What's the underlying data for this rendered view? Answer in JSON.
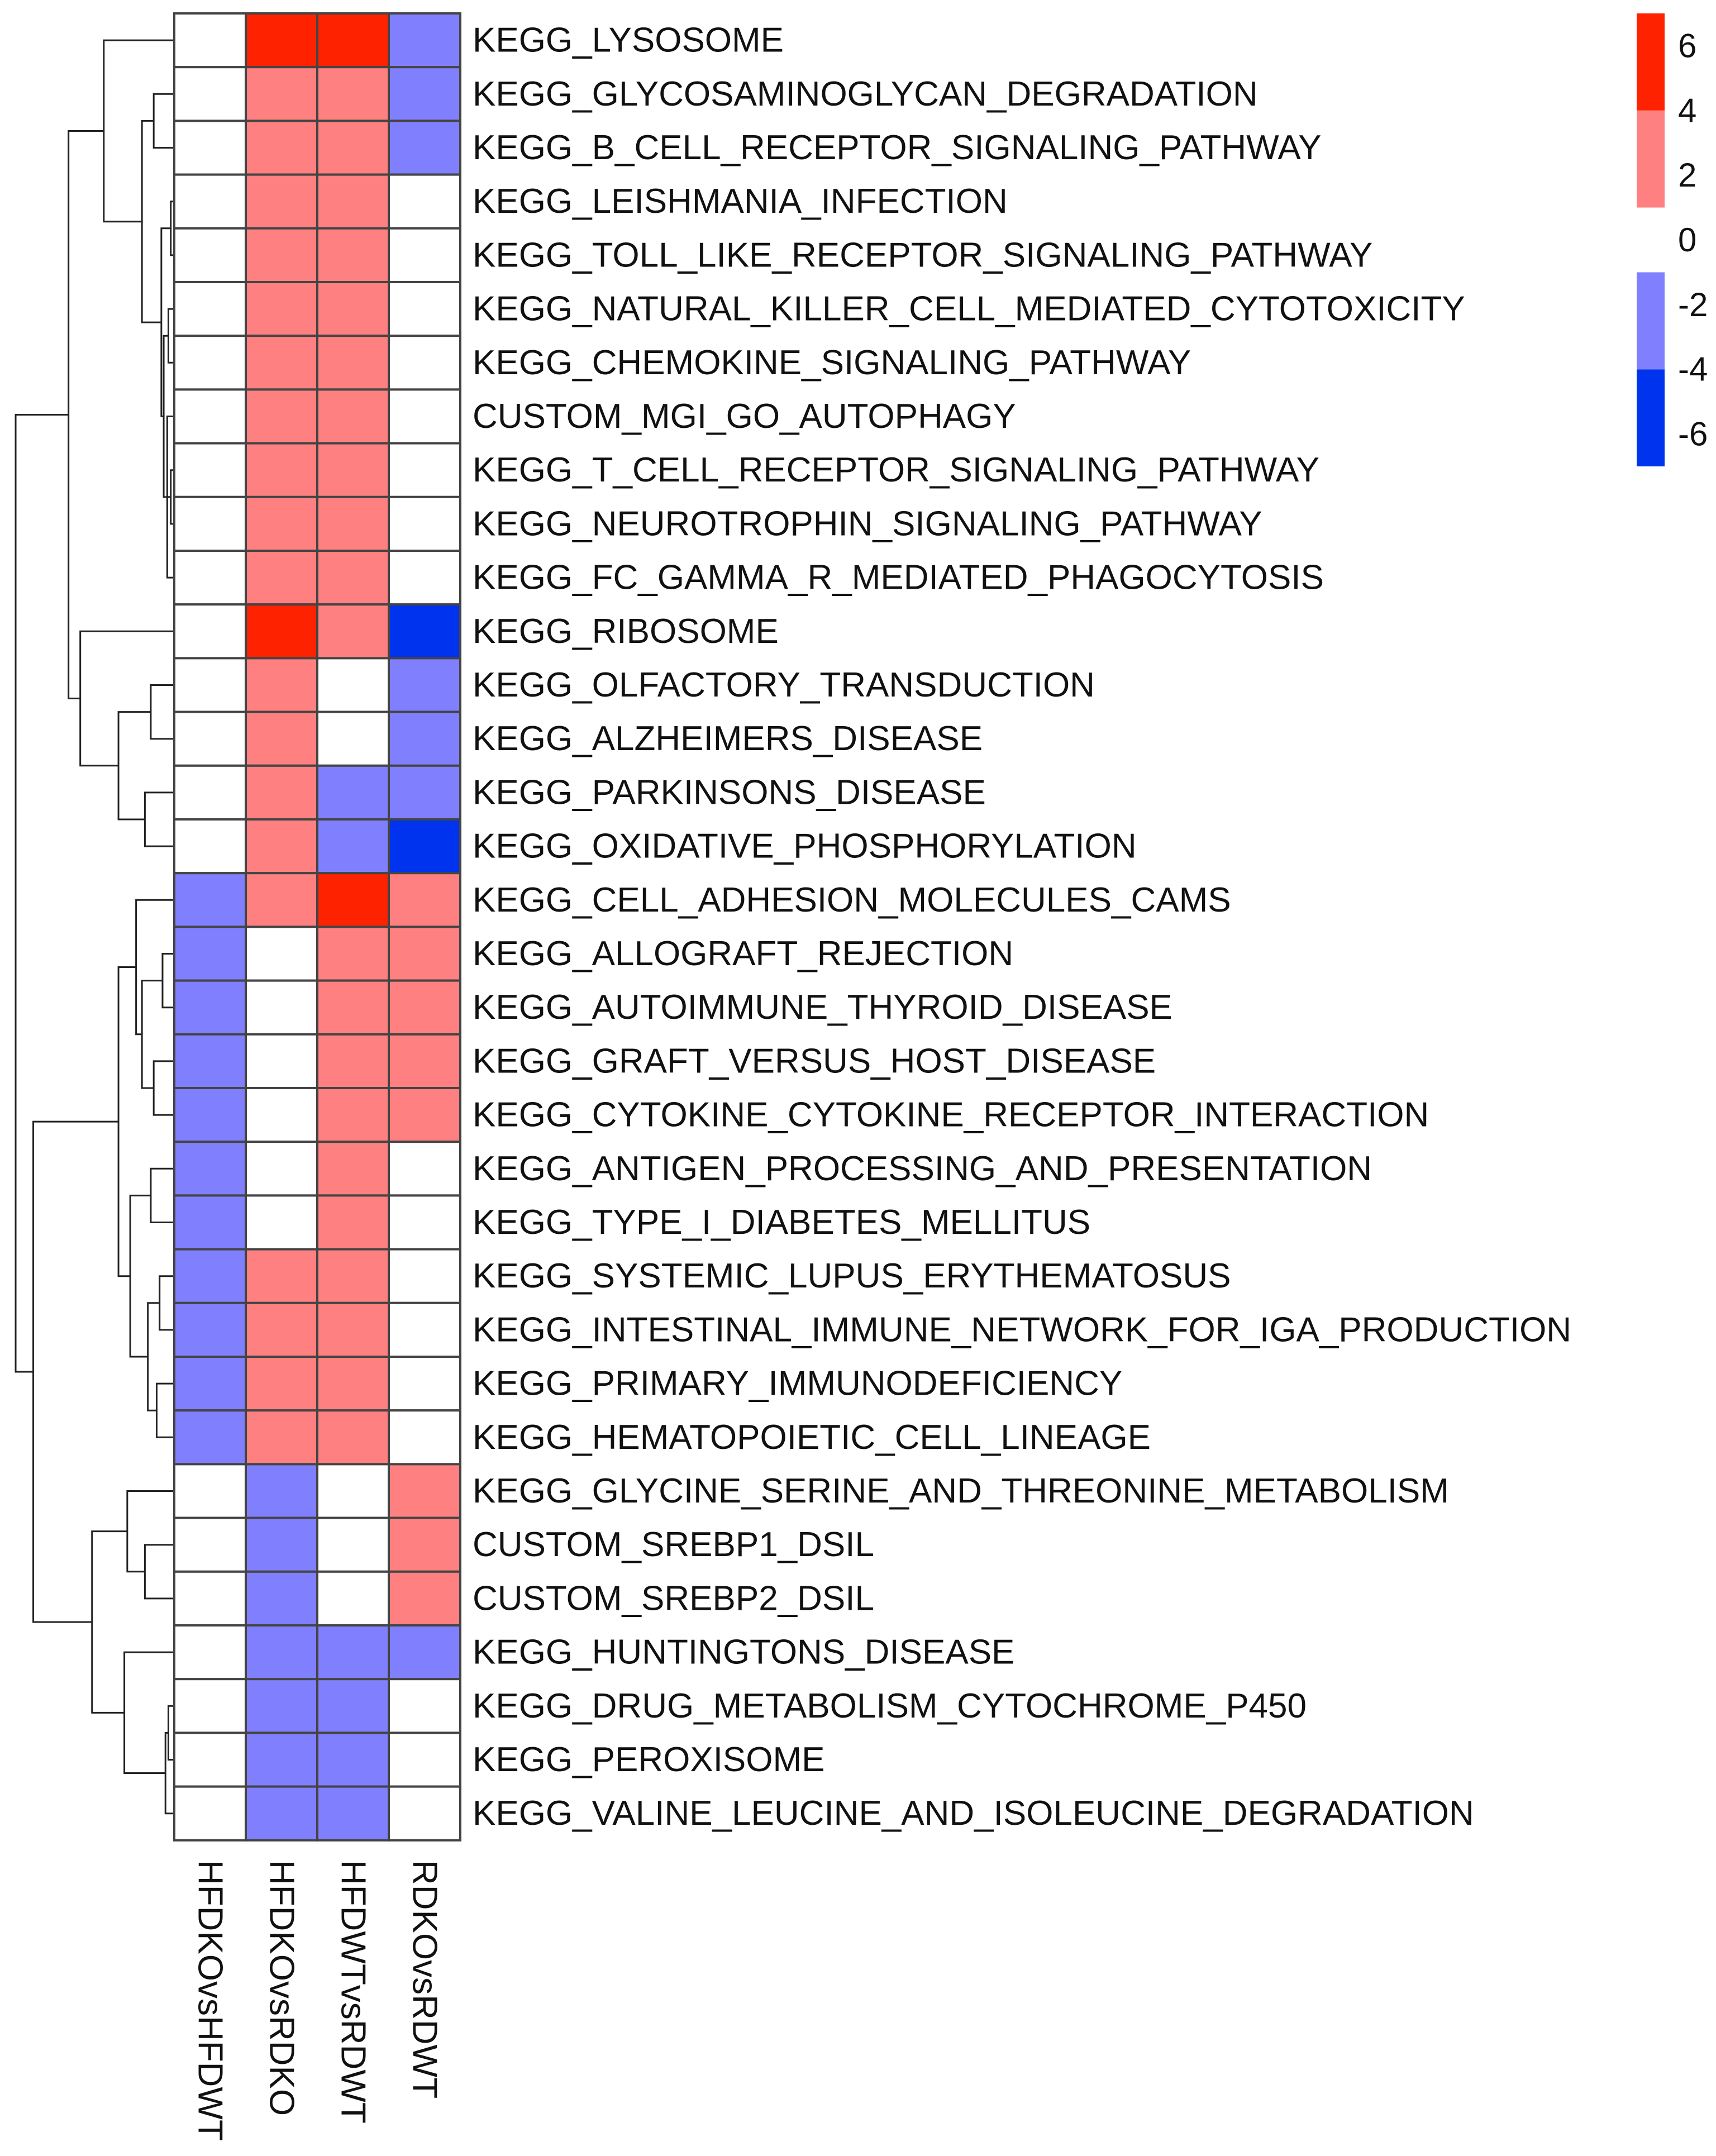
{
  "chart_data": {
    "type": "heatmap",
    "title": "",
    "columns": [
      "HFDKOvsHFDWT",
      "HFDKOvsRDKO",
      "HFDWTvsRDWT",
      "RDKOvsRDWT"
    ],
    "rows": [
      "KEGG_LYSOSOME",
      "KEGG_GLYCOSAMINOGLYCAN_DEGRADATION",
      "KEGG_B_CELL_RECEPTOR_SIGNALING_PATHWAY",
      "KEGG_LEISHMANIA_INFECTION",
      "KEGG_TOLL_LIKE_RECEPTOR_SIGNALING_PATHWAY",
      "KEGG_NATURAL_KILLER_CELL_MEDIATED_CYTOTOXICITY",
      "KEGG_CHEMOKINE_SIGNALING_PATHWAY",
      "CUSTOM_MGI_GO_AUTOPHAGY",
      "KEGG_T_CELL_RECEPTOR_SIGNALING_PATHWAY",
      "KEGG_NEUROTROPHIN_SIGNALING_PATHWAY",
      "KEGG_FC_GAMMA_R_MEDIATED_PHAGOCYTOSIS",
      "KEGG_RIBOSOME",
      "KEGG_OLFACTORY_TRANSDUCTION",
      "KEGG_ALZHEIMERS_DISEASE",
      "KEGG_PARKINSONS_DISEASE",
      "KEGG_OXIDATIVE_PHOSPHORYLATION",
      "KEGG_CELL_ADHESION_MOLECULES_CAMS",
      "KEGG_ALLOGRAFT_REJECTION",
      "KEGG_AUTOIMMUNE_THYROID_DISEASE",
      "KEGG_GRAFT_VERSUS_HOST_DISEASE",
      "KEGG_CYTOKINE_CYTOKINE_RECEPTOR_INTERACTION",
      "KEGG_ANTIGEN_PROCESSING_AND_PRESENTATION",
      "KEGG_TYPE_I_DIABETES_MELLITUS",
      "KEGG_SYSTEMIC_LUPUS_ERYTHEMATOSUS",
      "KEGG_INTESTINAL_IMMUNE_NETWORK_FOR_IGA_PRODUCTION",
      "KEGG_PRIMARY_IMMUNODEFICIENCY",
      "KEGG_HEMATOPOIETIC_CELL_LINEAGE",
      "KEGG_GLYCINE_SERINE_AND_THREONINE_METABOLISM",
      "CUSTOM_SREBP1_DSIL",
      "CUSTOM_SREBP2_DSIL",
      "KEGG_HUNTINGTONS_DISEASE",
      "KEGG_DRUG_METABOLISM_CYTOCHROME_P450",
      "KEGG_PEROXISOME",
      "KEGG_VALINE_LEUCINE_AND_ISOLEUCINE_DEGRADATION"
    ],
    "values": [
      [
        0,
        5,
        5,
        -2
      ],
      [
        0,
        2,
        2,
        -2
      ],
      [
        0,
        2,
        2,
        -2
      ],
      [
        0,
        2,
        2,
        0
      ],
      [
        0,
        2,
        2,
        0
      ],
      [
        0,
        2,
        2,
        0
      ],
      [
        0,
        2,
        2,
        0
      ],
      [
        0,
        2,
        2,
        0
      ],
      [
        0,
        2,
        2,
        0
      ],
      [
        0,
        2,
        2,
        0
      ],
      [
        0,
        2,
        2,
        0
      ],
      [
        0,
        5,
        2,
        -5
      ],
      [
        0,
        2,
        0,
        -2
      ],
      [
        0,
        2,
        0,
        -2
      ],
      [
        0,
        2,
        -2,
        -2
      ],
      [
        0,
        2,
        -2,
        -5
      ],
      [
        -2,
        2,
        5,
        2
      ],
      [
        -2,
        0,
        2,
        2
      ],
      [
        -2,
        0,
        2,
        2
      ],
      [
        -2,
        0,
        2,
        2
      ],
      [
        -2,
        0,
        2,
        2
      ],
      [
        -2,
        0,
        2,
        0
      ],
      [
        -2,
        0,
        2,
        0
      ],
      [
        -2,
        2,
        2,
        0
      ],
      [
        -2,
        2,
        2,
        0
      ],
      [
        -2,
        2,
        2,
        0
      ],
      [
        -2,
        2,
        2,
        0
      ],
      [
        0,
        -2,
        0,
        2
      ],
      [
        0,
        -2,
        0,
        2
      ],
      [
        0,
        -2,
        0,
        2
      ],
      [
        0,
        -2,
        -2,
        -2
      ],
      [
        0,
        -2,
        -2,
        0
      ],
      [
        0,
        -2,
        -2,
        0
      ],
      [
        0,
        -2,
        -2,
        0
      ]
    ],
    "color_scale": {
      "breaks": [
        -7,
        -4,
        -1,
        1,
        4,
        7
      ],
      "colors": [
        "#0033ee",
        "#8080ff",
        "#ffffff",
        "#ff8080",
        "#ff2200"
      ]
    },
    "legend": {
      "position": "top-right",
      "ticks": [
        6,
        4,
        2,
        0,
        -2,
        -4,
        -6
      ],
      "tick_labels": [
        "6",
        "4",
        "2",
        "0",
        "-2",
        "-4",
        "-6"
      ],
      "range": [
        -7,
        7
      ]
    },
    "dendrogram": {
      "merges": [
        [
          3,
          4,
          0.06
        ],
        [
          8,
          9,
          0.06
        ],
        [
          5,
          6,
          0.1
        ],
        [
          7,
          10,
          0.12
        ],
        [
          35,
          37,
          0.15
        ],
        [
          36,
          38,
          0.18
        ],
        [
          34,
          39,
          0.22
        ],
        [
          1,
          2,
          0.35
        ],
        [
          41,
          40,
          0.55
        ],
        [
          0,
          42,
          1.2
        ],
        [
          12,
          13,
          0.4
        ],
        [
          14,
          15,
          0.5
        ],
        [
          44,
          45,
          0.95
        ],
        [
          11,
          46,
          1.6
        ],
        [
          43,
          47,
          1.8
        ],
        [
          17,
          18,
          0.2
        ],
        [
          19,
          20,
          0.35
        ],
        [
          49,
          50,
          0.55
        ],
        [
          16,
          51,
          0.65
        ],
        [
          21,
          22,
          0.4
        ],
        [
          23,
          24,
          0.25
        ],
        [
          25,
          26,
          0.3
        ],
        [
          54,
          55,
          0.45
        ],
        [
          53,
          56,
          0.75
        ],
        [
          52,
          57,
          0.95
        ],
        [
          28,
          29,
          0.5
        ],
        [
          27,
          59,
          0.8
        ],
        [
          31,
          32,
          0.1
        ],
        [
          33,
          61,
          0.15
        ],
        [
          30,
          62,
          0.85
        ],
        [
          60,
          63,
          1.4
        ],
        [
          58,
          64,
          2.4
        ],
        [
          48,
          65,
          2.7
        ]
      ],
      "max_height": 2.7
    }
  }
}
